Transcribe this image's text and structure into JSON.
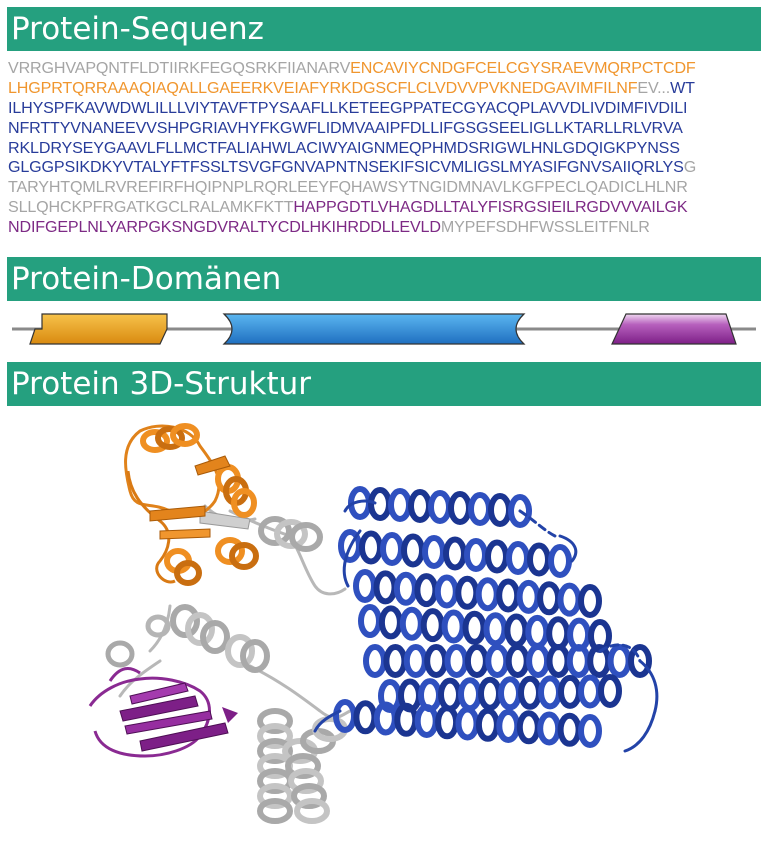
{
  "sections": {
    "sequence_title": "Protein-Sequenz",
    "domains_title": "Protein-Domänen",
    "structure_title": "Protein 3D-Struktur"
  },
  "sequence_lines": [
    [
      {
        "text": "VRRGHVAPQNTFLDTIIRKFEGQSRKFIIANARV",
        "domain": "none"
      },
      {
        "text": "ENCAVIYCNDGFCELCGYSRAEVMQRPCTCDF",
        "domain": "orange"
      }
    ],
    [
      {
        "text": "LHGPRTQRRAAAQIAQALLGAEERKVEIAFYRKDGSCFLCLVDVVPVKNEDGAVIMFILNF",
        "domain": "orange"
      },
      {
        "text": "EV...",
        "domain": "none"
      },
      {
        "text": "WT",
        "domain": "blue"
      }
    ],
    [
      {
        "text": "ILHYSPFKAVWDWLILLLVIYTAVFTPYSAAFLLKETEEGPPATECGYACQPLAVVDLIVDIMFIVDILI",
        "domain": "blue"
      }
    ],
    [
      {
        "text": "NFRTTYVNANEEVVSHPGRIAVHYFKGWFLIDMVAAIPFDLLIFGSGSEELIGLLKTARLLRLVRVA",
        "domain": "blue"
      }
    ],
    [
      {
        "text": "RKLDRYSEYGAAVLFLLMCTFALIAHWLACIWYAIGNMEQPHMDSRIGWLHNLGDQIGKPYNSS",
        "domain": "blue"
      }
    ],
    [
      {
        "text": "GLGGPSIKDKYVTALYFTFSSLTSVGFGNVAPNTNSEKIFSICVMLIGSLMYASIFGNVSAIIQRLYS",
        "domain": "blue"
      },
      {
        "text": "G",
        "domain": "none"
      }
    ],
    [
      {
        "text": "TARYHTQMLRVREFIRFHQIPNPLRQRLEEYFQHAWSYTNGIDMNAVLKGFPECLQADICLHLNR",
        "domain": "none"
      }
    ],
    [
      {
        "text": "SLLQHCKPFRGATKGCLRALAMKFKTT",
        "domain": "none"
      },
      {
        "text": "HAPPGDTLVHAGDLLTALYFISRGSIEILRGDVVVAILGK",
        "domain": "purple"
      }
    ],
    [
      {
        "text": "NDIFGEPLNLYARPGKSNGDVRALTYCDLHKIHRDDLLEVLD",
        "domain": "purple"
      },
      {
        "text": "MYPEFSDHFWSSLEITFNLR",
        "domain": "none"
      }
    ]
  ],
  "domains": [
    {
      "name": "orange",
      "color": "#f0a21c"
    },
    {
      "name": "blue",
      "color": "#2a8fdc"
    },
    {
      "name": "purple",
      "color": "#9b3aa3"
    }
  ],
  "colors": {
    "banner": "#25a07f",
    "gray": "#a5a5a5",
    "orange": "#f0962e",
    "blue": "#283c9a",
    "purple": "#7d2a85",
    "helix_gray": "#b8b8b8"
  }
}
